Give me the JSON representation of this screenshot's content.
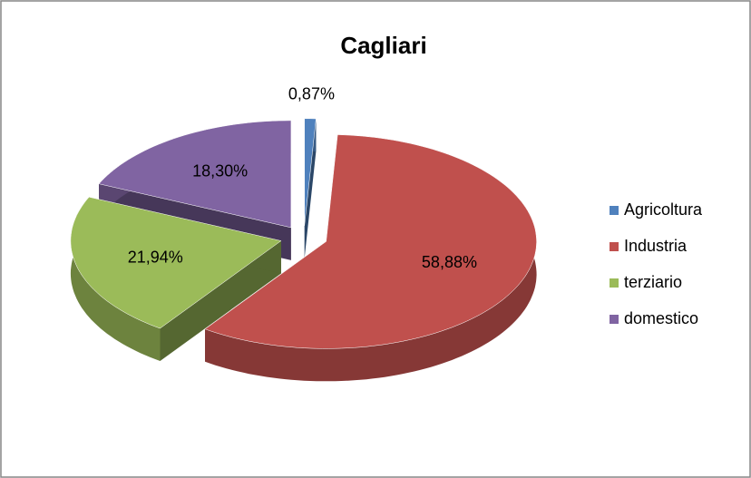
{
  "chart_data": {
    "type": "pie",
    "title": "Cagliari",
    "categories": [
      "Agricoltura",
      "Industria",
      "terziario",
      "domestico"
    ],
    "values": [
      0.87,
      58.88,
      21.94,
      18.3
    ],
    "value_labels": [
      "0,87%",
      "58,88%",
      "21,94%",
      "18,30%"
    ],
    "colors": [
      "#4f81bd",
      "#c0504d",
      "#9bbb59",
      "#8064a2"
    ],
    "legend": "right"
  }
}
